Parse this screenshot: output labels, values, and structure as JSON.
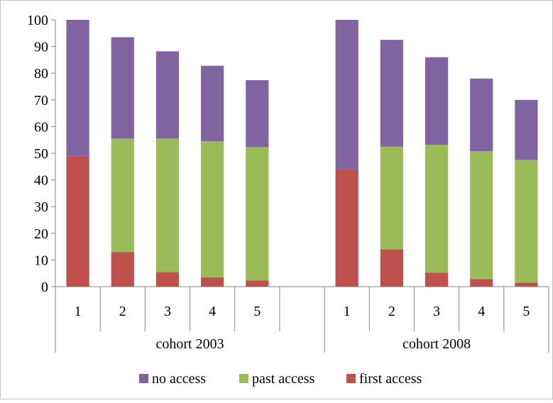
{
  "chart_data": {
    "type": "bar",
    "stacked": true,
    "title": "",
    "xlabel": "",
    "ylabel": "",
    "ylim": [
      0,
      100
    ],
    "ytick_step": 10,
    "grid": false,
    "legend_position": "bottom",
    "groups": [
      {
        "label": "cohort 2003",
        "categories": [
          "1",
          "2",
          "3",
          "4",
          "5",
          ""
        ]
      },
      {
        "label": "cohort 2008",
        "categories": [
          "1",
          "2",
          "3",
          "4",
          "5"
        ]
      }
    ],
    "series": [
      {
        "name": "first access",
        "color": "#c0504d",
        "values": [
          49,
          13,
          5.5,
          3.5,
          2.3,
          null,
          44,
          14,
          5.2,
          2.8,
          1.5
        ]
      },
      {
        "name": "past access",
        "color": "#9bbb59",
        "values": [
          0,
          42.5,
          50,
          51,
          50,
          null,
          0,
          38.5,
          48,
          48,
          46
        ]
      },
      {
        "name": "no access",
        "color": "#8064a2",
        "values": [
          51,
          38,
          32.7,
          28.3,
          25.1,
          null,
          56,
          40,
          32.8,
          27.2,
          22.5
        ]
      }
    ],
    "legend_order": [
      "no access",
      "past access",
      "first access"
    ]
  }
}
